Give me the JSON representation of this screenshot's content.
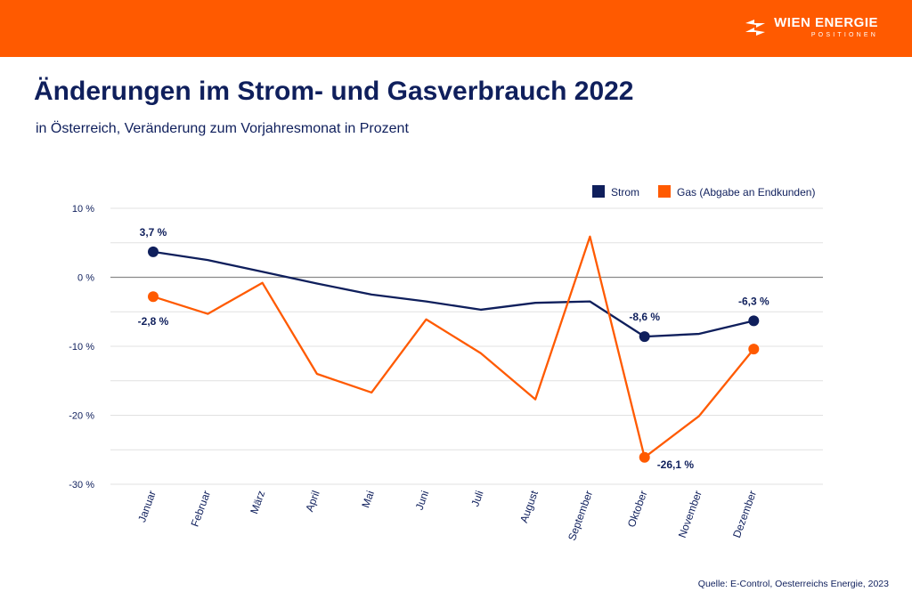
{
  "header": {
    "brand_name": "WIEN ENERGIE",
    "brand_sub": "POSITIONEN",
    "brand_color": "#ff5a00"
  },
  "title": "Änderungen im Strom- und Gasverbrauch 2022",
  "subtitle": "in Österreich, Veränderung zum Vorjahresmonat in Prozent",
  "source": "Quelle: E-Control, Oesterreichs Energie, 2023",
  "chart_data": {
    "type": "line",
    "categories": [
      "Januar",
      "Februar",
      "März",
      "April",
      "Mai",
      "Juni",
      "Juli",
      "August",
      "September",
      "Oktober",
      "November",
      "Dezember"
    ],
    "series": [
      {
        "name": "Strom",
        "color": "#0f1f5c",
        "values": [
          3.7,
          2.5,
          0.8,
          -0.9,
          -2.5,
          -3.5,
          -4.7,
          -3.7,
          -3.5,
          -8.6,
          -8.2,
          -6.3
        ]
      },
      {
        "name": "Gas (Abgabe an Endkunden)",
        "color": "#ff5a00",
        "values": [
          -2.8,
          -5.3,
          -0.8,
          -14.0,
          -16.7,
          -6.1,
          -11.0,
          -17.7,
          5.9,
          -26.1,
          -20.1,
          -10.4
        ]
      }
    ],
    "ylim": [
      -30,
      10
    ],
    "yticks": [
      10,
      0,
      -10,
      -20,
      -30
    ],
    "ytick_labels": [
      "10 %",
      "0 %",
      "-10 %",
      "-20 %",
      "-30 %"
    ],
    "grid": true,
    "legend_position": "top-right",
    "annotations": [
      {
        "series": 0,
        "index": 0,
        "text": "3,7 %",
        "placement": "above"
      },
      {
        "series": 1,
        "index": 0,
        "text": "-2,8 %",
        "placement": "below"
      },
      {
        "series": 0,
        "index": 9,
        "text": "-8,6 %",
        "placement": "above"
      },
      {
        "series": 1,
        "index": 9,
        "text": "-26,1 %",
        "placement": "below-right"
      },
      {
        "series": 0,
        "index": 11,
        "text": "-6,3 %",
        "placement": "above"
      }
    ],
    "highlight_points": [
      [
        0,
        0
      ],
      [
        1,
        0
      ],
      [
        0,
        9
      ],
      [
        1,
        9
      ],
      [
        0,
        11
      ],
      [
        1,
        11
      ]
    ]
  }
}
